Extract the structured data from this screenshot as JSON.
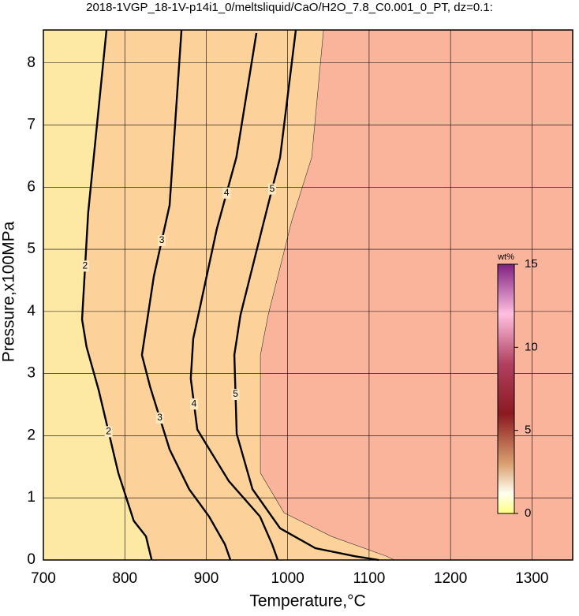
{
  "chart_data": {
    "type": "contour",
    "title": "2018-1VGP_18-1V-p14i1_0/meltsliquid/CaO/H2O_7.8_C0.001_0_PT, dz=0.1:",
    "x_label": "Temperature,°C",
    "y_label": "Pressure,x100MPa",
    "xlim": [
      700,
      1350
    ],
    "ylim": [
      0,
      8.53
    ],
    "xticks": [
      700,
      800,
      900,
      1000,
      1100,
      1200,
      1300
    ],
    "yticks": [
      0,
      1,
      2,
      3,
      4,
      5,
      6,
      7,
      8
    ],
    "grid": true,
    "series": [
      {
        "label": "2",
        "x": [
          777.5,
          755,
          747.5,
          753,
          768,
          792,
          811,
          826,
          833
        ],
        "y": [
          8.53,
          5.59,
          3.87,
          3.43,
          2.73,
          1.4,
          0.63,
          0.38,
          0
        ]
      },
      {
        "label": "3",
        "x": [
          869.6,
          855,
          835.7,
          821,
          831,
          855,
          879,
          903.5,
          923,
          929.7
        ],
        "y": [
          8.53,
          5.71,
          4.57,
          3.3,
          2.79,
          1.78,
          1.14,
          0.7,
          0.25,
          0
        ]
      },
      {
        "label": "4",
        "x": [
          961.6,
          937,
          913,
          884,
          881,
          889,
          927.7,
          966,
          981,
          987.8
        ],
        "y": [
          8.48,
          6.48,
          5.33,
          3.56,
          2.92,
          2.1,
          1.27,
          0.7,
          0.25,
          0
        ]
      },
      {
        "label": "5",
        "x": [
          1010,
          990.7,
          971,
          942,
          934.5,
          937.4,
          956.8,
          990.7,
          1034,
          1083,
          1112
        ],
        "y": [
          8.53,
          6.48,
          5.46,
          3.94,
          3.3,
          2.03,
          1.14,
          0.51,
          0.19,
          0.06,
          0
        ]
      }
    ],
    "fill_edge": {
      "x": [
        1044,
        1029.5,
        1005,
        976,
        966.5,
        966.5,
        995.5,
        1053.7,
        1121.5,
        1131
      ],
      "y": [
        8.53,
        6.48,
        5.46,
        3.94,
        3.3,
        1.4,
        0.76,
        0.38,
        0.06,
        0
      ]
    },
    "colorbar": {
      "label": "wt%",
      "lim": [
        0,
        15
      ],
      "ticks": [
        0,
        5,
        10,
        15
      ]
    }
  }
}
